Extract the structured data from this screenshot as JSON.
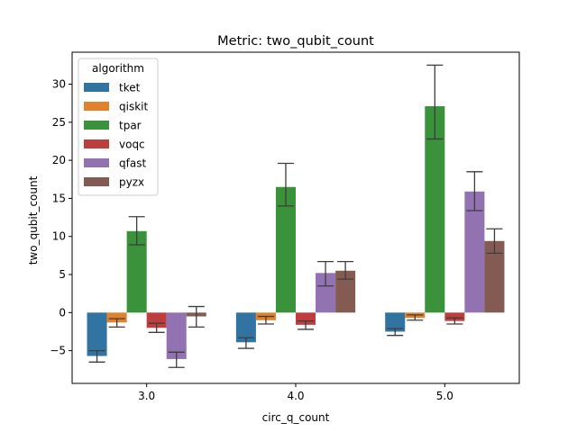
{
  "chart_data": {
    "type": "bar",
    "title": "Metric: two_qubit_count",
    "xlabel": "circ_q_count",
    "ylabel": "two_qubit_count",
    "categories": [
      "3.0",
      "4.0",
      "5.0"
    ],
    "ylim": [
      -9.3,
      34.2
    ],
    "yticks": [
      -5,
      0,
      5,
      10,
      15,
      20,
      25,
      30
    ],
    "legend": {
      "title": "algorithm",
      "placement": "top-left"
    },
    "grid": false,
    "series": [
      {
        "name": "tket",
        "color": "#3274a1",
        "values": [
          -5.7,
          -3.9,
          -2.5
        ],
        "err_low": [
          -6.5,
          -4.7,
          -3.0
        ],
        "err_high": [
          -5.0,
          -3.3,
          -2.1
        ]
      },
      {
        "name": "qiskit",
        "color": "#e1812c",
        "values": [
          -1.3,
          -1.0,
          -0.7
        ],
        "err_low": [
          -1.9,
          -1.5,
          -1.0
        ],
        "err_high": [
          -0.8,
          -0.5,
          -0.3
        ]
      },
      {
        "name": "tpar",
        "color": "#3a923a",
        "values": [
          10.7,
          16.5,
          27.1
        ],
        "err_low": [
          8.9,
          14.0,
          22.8
        ],
        "err_high": [
          12.6,
          19.6,
          32.5
        ]
      },
      {
        "name": "voqc",
        "color": "#c03d3e",
        "values": [
          -2.0,
          -1.6,
          -1.1
        ],
        "err_low": [
          -2.6,
          -2.2,
          -1.5
        ],
        "err_high": [
          -1.4,
          -1.1,
          -0.7
        ]
      },
      {
        "name": "qfast",
        "color": "#9372b2",
        "values": [
          -6.1,
          5.2,
          15.9
        ],
        "err_low": [
          -7.2,
          3.5,
          13.4
        ],
        "err_high": [
          -5.2,
          6.7,
          18.5
        ]
      },
      {
        "name": "pyzx",
        "color": "#845b53",
        "values": [
          -0.5,
          5.5,
          9.4
        ],
        "err_low": [
          -1.9,
          4.4,
          7.8
        ],
        "err_high": [
          0.8,
          6.7,
          11.0
        ]
      }
    ]
  }
}
